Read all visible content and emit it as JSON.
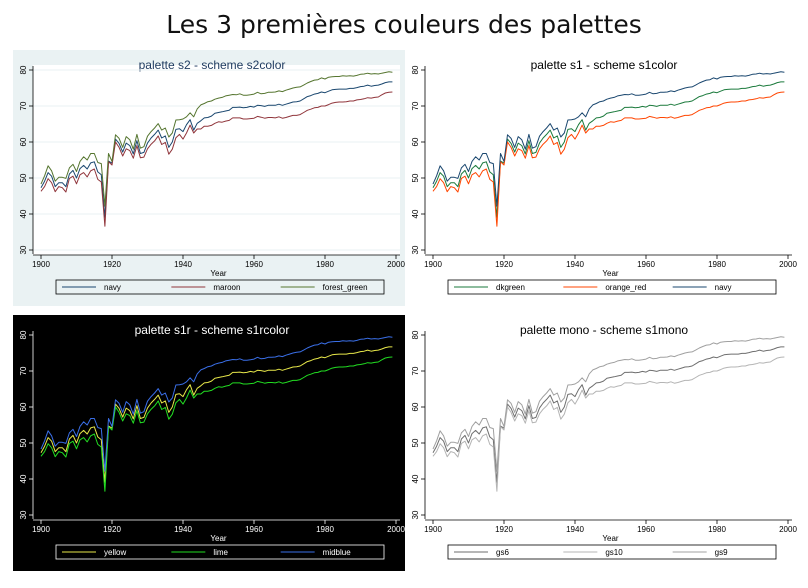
{
  "page": {
    "title": "Les 3 premières couleurs des palettes"
  },
  "chart_data": [
    {
      "type": "line",
      "title": "palette s2 - scheme s2color",
      "xlabel": "Year",
      "ylabel": "",
      "xlim": [
        1900,
        2000
      ],
      "ylim": [
        30,
        80
      ],
      "xticks": [
        "1900",
        "1920",
        "1940",
        "1960",
        "1980",
        "2000"
      ],
      "yticks": [
        "30",
        "40",
        "50",
        "60",
        "70",
        "80"
      ],
      "grid": true,
      "legend_position": "bottom",
      "colors": {
        "outer_background": "#eaf2f3",
        "plot_background": "#ffffff",
        "title": "#1e3a5f",
        "text": "#000000",
        "axis": "#000000",
        "grid": "#eaf2f3"
      },
      "x": [
        1900,
        1901,
        1902,
        1903,
        1904,
        1905,
        1906,
        1907,
        1908,
        1909,
        1910,
        1911,
        1912,
        1913,
        1914,
        1915,
        1916,
        1917,
        1918,
        1919,
        1920,
        1921,
        1922,
        1923,
        1924,
        1925,
        1926,
        1927,
        1928,
        1929,
        1930,
        1931,
        1932,
        1933,
        1934,
        1935,
        1936,
        1937,
        1938,
        1939,
        1940,
        1941,
        1942,
        1943,
        1944,
        1945,
        1946,
        1947,
        1948,
        1949,
        1950,
        1951,
        1952,
        1953,
        1954,
        1955,
        1956,
        1957,
        1958,
        1959,
        1960,
        1961,
        1962,
        1963,
        1964,
        1965,
        1966,
        1967,
        1968,
        1969,
        1970,
        1971,
        1972,
        1973,
        1974,
        1975,
        1976,
        1977,
        1978,
        1979,
        1980,
        1981,
        1982,
        1983,
        1984,
        1985,
        1986,
        1987,
        1988,
        1989,
        1990,
        1991,
        1992,
        1993,
        1994,
        1995,
        1996,
        1997,
        1998,
        1999
      ],
      "series": [
        {
          "name": "navy",
          "color": "#1a476f",
          "values": [
            47.3,
            49.1,
            51.5,
            50.5,
            47.6,
            48.7,
            48.7,
            47.6,
            51.1,
            52.1,
            50.0,
            52.6,
            53.5,
            52.5,
            54.2,
            54.5,
            51.7,
            50.9,
            39.1,
            54.7,
            54.1,
            60.8,
            59.6,
            57.2,
            59.7,
            59.0,
            56.7,
            60.4,
            56.8,
            57.1,
            59.7,
            61.1,
            62.1,
            63.3,
            61.1,
            61.7,
            58.5,
            60.0,
            63.5,
            63.7,
            62.9,
            64.8,
            66.2,
            63.3,
            65.2,
            65.9,
            66.7,
            66.8,
            67.2,
            68.0,
            68.2,
            68.4,
            68.6,
            68.8,
            69.6,
            69.6,
            69.7,
            69.5,
            69.6,
            69.9,
            69.7,
            70.2,
            70.1,
            69.9,
            70.2,
            70.2,
            70.2,
            70.5,
            70.2,
            70.5,
            70.8,
            71.1,
            71.2,
            71.4,
            72.0,
            72.6,
            72.9,
            73.3,
            73.5,
            73.9,
            73.7,
            74.1,
            74.5,
            74.6,
            74.7,
            74.7,
            74.7,
            74.9,
            74.9,
            75.1,
            75.4,
            75.5,
            75.8,
            75.5,
            75.7,
            75.8,
            76.1,
            76.5,
            76.7,
            76.7
          ]
        },
        {
          "name": "maroon",
          "color": "#90353b",
          "values": [
            46.3,
            47.6,
            49.8,
            48.7,
            46.2,
            47.6,
            47.3,
            46.1,
            49.9,
            50.5,
            48.4,
            50.9,
            51.5,
            50.3,
            52.0,
            52.5,
            49.6,
            48.9,
            36.6,
            54.5,
            53.6,
            60.0,
            58.5,
            56.1,
            58.1,
            57.6,
            55.5,
            59.0,
            55.6,
            55.8,
            58.1,
            59.4,
            60.3,
            61.7,
            59.3,
            59.9,
            56.6,
            58.0,
            61.2,
            62.1,
            60.8,
            62.5,
            64.7,
            62.5,
            63.6,
            63.6,
            64.4,
            64.4,
            64.6,
            65.2,
            65.6,
            65.5,
            65.8,
            66.0,
            66.7,
            66.7,
            66.7,
            66.4,
            66.4,
            66.5,
            66.6,
            67.1,
            66.9,
            66.6,
            66.8,
            66.8,
            66.7,
            67.0,
            66.6,
            66.8,
            67.1,
            67.4,
            67.4,
            67.6,
            68.2,
            68.8,
            69.1,
            69.5,
            69.6,
            70.0,
            70.0,
            70.4,
            70.8,
            71.0,
            71.1,
            71.1,
            71.2,
            71.4,
            71.4,
            71.7,
            71.8,
            72.0,
            72.3,
            72.2,
            72.4,
            72.5,
            73.1,
            73.6,
            73.8,
            73.9
          ]
        },
        {
          "name": "forest_green",
          "color": "#55752f",
          "values": [
            48.3,
            50.6,
            53.4,
            52.0,
            49.1,
            50.2,
            50.2,
            49.9,
            52.8,
            53.8,
            51.8,
            54.6,
            55.9,
            55.0,
            56.8,
            56.8,
            54.3,
            54.0,
            42.2,
            56.8,
            54.6,
            62.0,
            61.0,
            58.5,
            61.5,
            60.6,
            58.0,
            62.1,
            58.3,
            58.7,
            61.6,
            62.9,
            63.9,
            65.1,
            63.3,
            63.9,
            61.4,
            62.5,
            66.1,
            66.2,
            66.4,
            67.0,
            68.1,
            67.0,
            69.2,
            70.3,
            70.7,
            71.2,
            71.4,
            71.9,
            72.2,
            72.4,
            72.8,
            73.0,
            73.2,
            73.1,
            73.4,
            73.0,
            73.0,
            73.1,
            73.3,
            73.8,
            73.4,
            73.5,
            73.8,
            73.8,
            73.9,
            74.2,
            74.0,
            74.4,
            74.7,
            75.0,
            75.2,
            75.3,
            75.8,
            76.4,
            76.8,
            77.2,
            77.3,
            77.8,
            77.5,
            78.0,
            78.1,
            78.2,
            78.2,
            78.4,
            78.3,
            78.4,
            78.3,
            78.5,
            78.8,
            78.9,
            79.1,
            78.9,
            79.0,
            78.9,
            79.1,
            79.3,
            79.5,
            79.4
          ]
        }
      ]
    },
    {
      "type": "line",
      "title": "palette s1 - scheme s1color",
      "xlabel": "Year",
      "ylabel": "",
      "xlim": [
        1900,
        2000
      ],
      "ylim": [
        30,
        80
      ],
      "xticks": [
        "1900",
        "1920",
        "1940",
        "1960",
        "1980",
        "2000"
      ],
      "yticks": [
        "30",
        "40",
        "50",
        "60",
        "70",
        "80"
      ],
      "grid": false,
      "legend_position": "bottom",
      "colors": {
        "outer_background": "#ffffff",
        "plot_background": "#ffffff",
        "title": "#000000",
        "text": "#000000",
        "axis": "#000000",
        "grid": "#ffffff"
      },
      "series": [
        {
          "name": "dkgreen",
          "color": "#1b7a3c"
        },
        {
          "name": "orange_red",
          "color": "#ff4500"
        },
        {
          "name": "navy",
          "color": "#1a476f"
        }
      ]
    },
    {
      "type": "line",
      "title": "palette s1r - scheme s1rcolor",
      "xlabel": "Year",
      "ylabel": "",
      "xlim": [
        1900,
        2000
      ],
      "ylim": [
        30,
        80
      ],
      "xticks": [
        "1900",
        "1920",
        "1940",
        "1960",
        "1980",
        "2000"
      ],
      "yticks": [
        "30",
        "40",
        "50",
        "60",
        "70",
        "80"
      ],
      "grid": false,
      "legend_position": "bottom",
      "colors": {
        "outer_background": "#000000",
        "plot_background": "#000000",
        "title": "#ffffff",
        "text": "#ffffff",
        "axis": "#ffffff",
        "grid": "#000000"
      },
      "series": [
        {
          "name": "yellow",
          "color": "#e8e84a"
        },
        {
          "name": "lime",
          "color": "#22dd22"
        },
        {
          "name": "midblue",
          "color": "#3a6fe8"
        }
      ]
    },
    {
      "type": "line",
      "title": "palette mono - scheme s1mono",
      "xlabel": "Year",
      "ylabel": "",
      "xlim": [
        1900,
        2000
      ],
      "ylim": [
        30,
        80
      ],
      "xticks": [
        "1900",
        "1920",
        "1940",
        "1960",
        "1980",
        "2000"
      ],
      "yticks": [
        "30",
        "40",
        "50",
        "60",
        "70",
        "80"
      ],
      "grid": false,
      "legend_position": "bottom",
      "colors": {
        "outer_background": "#ffffff",
        "plot_background": "#ffffff",
        "title": "#000000",
        "text": "#000000",
        "axis": "#000000",
        "grid": "#ffffff"
      },
      "series": [
        {
          "name": "gs6",
          "color": "#6e6e6e"
        },
        {
          "name": "gs10",
          "color": "#b4b4b4"
        },
        {
          "name": "gs9",
          "color": "#a0a0a0"
        }
      ]
    }
  ]
}
